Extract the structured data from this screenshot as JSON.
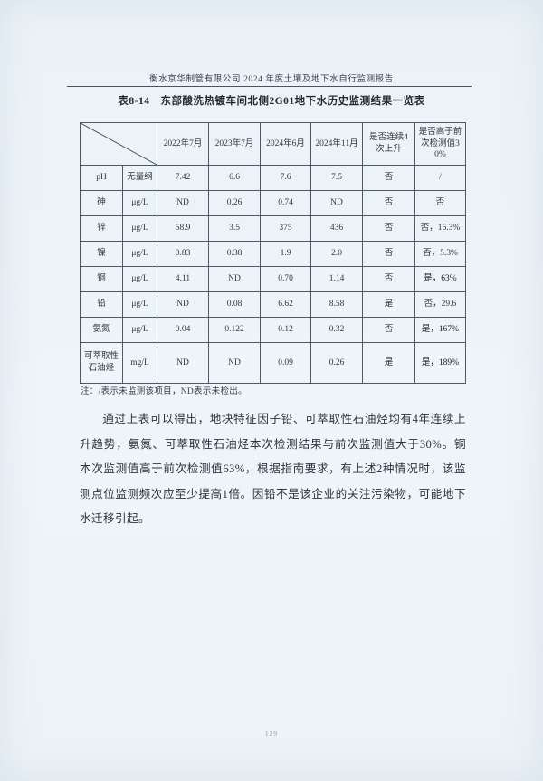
{
  "document": {
    "header_title": "衡水京华制管有限公司 2024 年度土壤及地下水自行监测报告",
    "table_caption": "表8-14　东部酸洗热镀车间北侧2G01地下水历史监测结果一览表",
    "note": "注：/表示未监测该项目，ND表示未检出。",
    "paragraph": "通过上表可以得出，地块特征因子铅、可萃取性石油烃均有4年连续上升趋势，氨氮、可萃取性石油烃本次检测结果与前次监测值大于30%。铜本次监测值高于前次检测值63%，根据指南要求，有上述2种情况时，该监测点位监测频次应至少提高1倍。因铅不是该企业的关注污染物，可能地下水迁移引起。",
    "page_number": "129"
  },
  "table": {
    "columns": [
      "2022年7月",
      "2023年7月",
      "2024年6月",
      "2024年11月",
      "是否连续4次上升",
      "是否高于前次检测值30%"
    ],
    "rows": [
      {
        "name": "pH",
        "unit": "无量纲",
        "values": [
          "7.42",
          "6.6",
          "7.6",
          "7.5",
          "否",
          "/"
        ],
        "bold": []
      },
      {
        "name": "砷",
        "unit": "μg/L",
        "values": [
          "ND",
          "0.26",
          "0.74",
          "ND",
          "否",
          "否"
        ],
        "bold": []
      },
      {
        "name": "锌",
        "unit": "μg/L",
        "values": [
          "58.9",
          "3.5",
          "375",
          "436",
          "否",
          "否，16.3%"
        ],
        "bold": []
      },
      {
        "name": "镍",
        "unit": "μg/L",
        "values": [
          "0.83",
          "0.38",
          "1.9",
          "2.0",
          "否",
          "否，5.3%"
        ],
        "bold": []
      },
      {
        "name": "铜",
        "unit": "μg/L",
        "values": [
          "4.11",
          "ND",
          "0.70",
          "1.14",
          "否",
          "是，63%"
        ],
        "bold": [
          5
        ]
      },
      {
        "name": "铅",
        "unit": "μg/L",
        "values": [
          "ND",
          "0.08",
          "6.62",
          "8.58",
          "是",
          "否，29.6"
        ],
        "bold": [
          4
        ]
      },
      {
        "name": "氨氮",
        "unit": "μg/L",
        "values": [
          "0.04",
          "0.122",
          "0.12",
          "0.32",
          "否",
          "是，167%"
        ],
        "bold": [
          5
        ]
      },
      {
        "name": "可萃取性石油烃",
        "unit": "mg/L",
        "values": [
          "ND",
          "ND",
          "0.09",
          "0.26",
          "是",
          "是，189%"
        ],
        "bold": [
          4,
          5
        ]
      }
    ]
  },
  "colors": {
    "page_background": "#edf3f8",
    "text": "#2e3740",
    "table_border": "#4e5a64",
    "page_number_muted": "#93a0ab"
  }
}
